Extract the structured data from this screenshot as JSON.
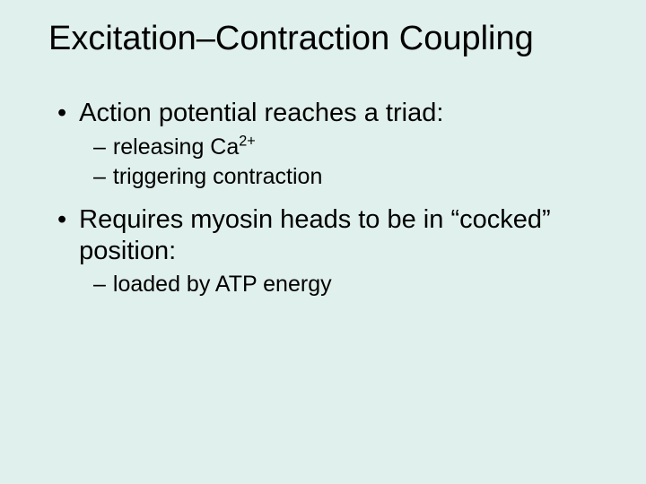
{
  "slide": {
    "background_color": "#e0f0ec",
    "text_color": "#000000",
    "title": "Excitation–Contraction Coupling",
    "title_fontsize": 38,
    "bullet1_fontsize": 29,
    "bullet2_fontsize": 25,
    "bullets": [
      {
        "level": 1,
        "marker": "•",
        "text": "Action potential reaches a triad:"
      },
      {
        "level": 2,
        "marker": "–",
        "text_prefix": "releasing Ca",
        "superscript": "2+"
      },
      {
        "level": 2,
        "marker": "–",
        "text": "triggering contraction"
      },
      {
        "level": 1,
        "marker": "•",
        "text": "Requires myosin heads to be in “cocked” position:",
        "gap_before": true
      },
      {
        "level": 2,
        "marker": "–",
        "text": "loaded by ATP energy"
      }
    ]
  }
}
